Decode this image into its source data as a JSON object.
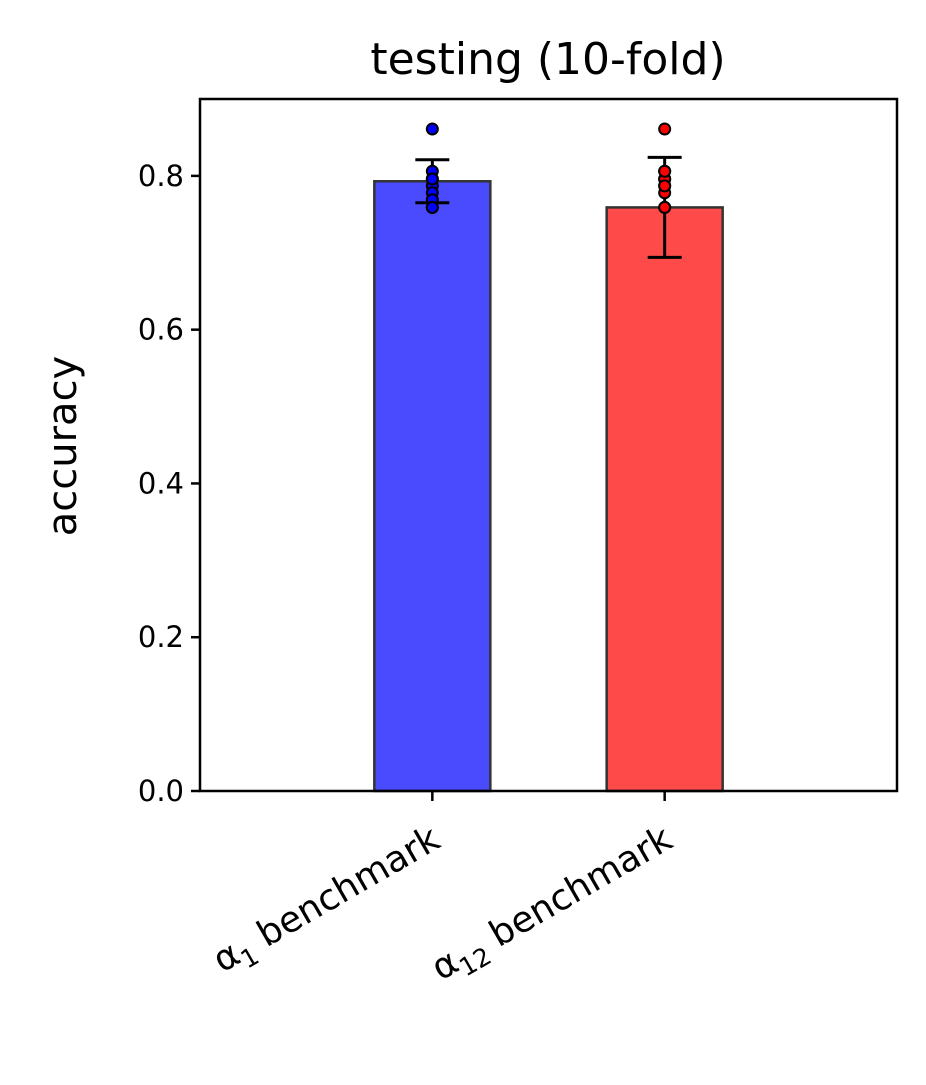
{
  "chart_data": {
    "type": "bar",
    "title": "testing (10-fold)",
    "xlabel": "",
    "ylabel": "accuracy",
    "ylim": [
      0,
      0.9
    ],
    "yticks": [
      0.0,
      0.2,
      0.4,
      0.6,
      0.8
    ],
    "ytick_labels": [
      "0.0",
      "0.2",
      "0.4",
      "0.6",
      "0.8"
    ],
    "xlim": [
      -1,
      2
    ],
    "grid": false,
    "categories": [
      {
        "symbol": "α",
        "sub": "1",
        "suffix": " benchmark"
      },
      {
        "symbol": "α",
        "sub": "12",
        "suffix": " benchmark"
      }
    ],
    "values": [
      0.793,
      0.759
    ],
    "errors": [
      0.028,
      0.065
    ],
    "colors": [
      "#4a4aff",
      "#ff4a4a"
    ],
    "point_colors": [
      "#0000ff",
      "#ff0000"
    ],
    "edge_color": "#333333",
    "points": [
      [
        0.861,
        0.806,
        0.796,
        0.787,
        0.778,
        0.769,
        0.759,
        0.759,
        0.759,
        0.796
      ],
      [
        0.861,
        0.806,
        0.796,
        0.787,
        0.778,
        0.759,
        0.759,
        0.796,
        0.806,
        0.787
      ]
    ]
  }
}
